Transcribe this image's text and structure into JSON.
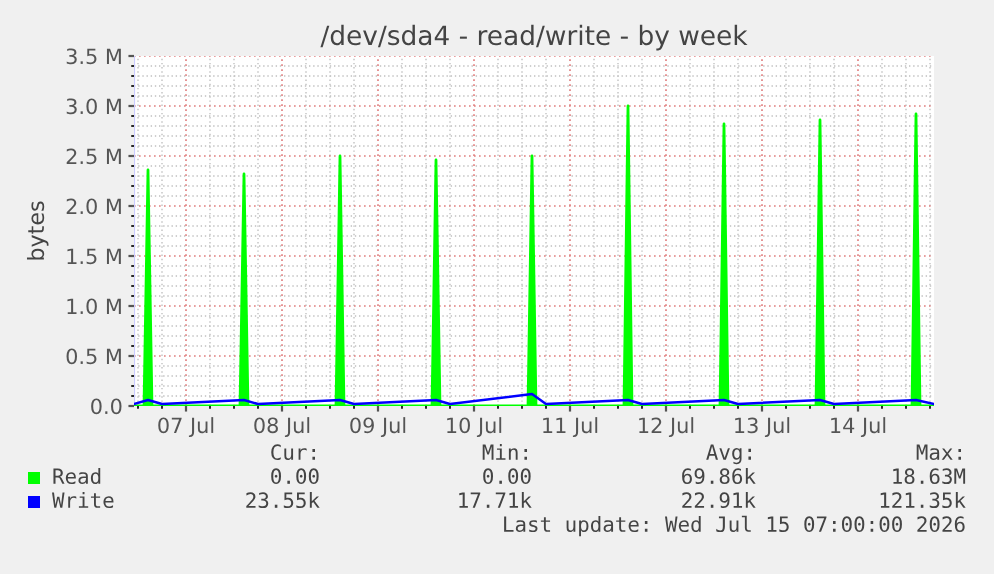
{
  "chart_data": {
    "type": "area",
    "title": "/dev/sda4 - read/write - by week",
    "ylabel": "bytes",
    "series": [
      {
        "name": "Read",
        "color": "#00ff00",
        "x": [
          "2026-07-06T23:00",
          "2026-07-07T01:30",
          "2026-07-07T02:30",
          "2026-07-07T03:30",
          "2026-07-08T01:30",
          "2026-07-08T02:30",
          "2026-07-08T03:30",
          "2026-07-09T01:30",
          "2026-07-09T02:30",
          "2026-07-09T03:30",
          "2026-07-10T01:30",
          "2026-07-10T02:30",
          "2026-07-10T03:30",
          "2026-07-11T01:30",
          "2026-07-11T02:30",
          "2026-07-11T03:30",
          "2026-07-12T01:30",
          "2026-07-12T02:30",
          "2026-07-12T03:30",
          "2026-07-13T01:30",
          "2026-07-13T02:30",
          "2026-07-13T03:30",
          "2026-07-14T01:30",
          "2026-07-14T02:30",
          "2026-07-14T03:30",
          "2026-07-15T01:30",
          "2026-07-15T02:30",
          "2026-07-15T03:30",
          "2026-07-15T07:00"
        ],
        "values": [
          0,
          0,
          2360000,
          0,
          0,
          2320000,
          0,
          0,
          2500000,
          0,
          0,
          2460000,
          0,
          0,
          2500000,
          0,
          0,
          3000000,
          0,
          0,
          2820000,
          0,
          0,
          2860000,
          0,
          0,
          2920000,
          0,
          0
        ]
      },
      {
        "name": "Write",
        "color": "#0000ff",
        "type": "line",
        "x": [
          "2026-07-06T23:00",
          "2026-07-07T02:30",
          "2026-07-07T06:00",
          "2026-07-08T02:30",
          "2026-07-08T06:00",
          "2026-07-09T02:30",
          "2026-07-09T06:00",
          "2026-07-10T02:30",
          "2026-07-10T06:00",
          "2026-07-11T02:30",
          "2026-07-11T06:00",
          "2026-07-12T02:30",
          "2026-07-12T06:00",
          "2026-07-13T02:30",
          "2026-07-13T06:00",
          "2026-07-14T02:30",
          "2026-07-14T06:00",
          "2026-07-15T02:30",
          "2026-07-15T07:00"
        ],
        "values": [
          20000,
          60000,
          20000,
          60000,
          20000,
          60000,
          20000,
          60000,
          20000,
          120000,
          20000,
          60000,
          20000,
          60000,
          20000,
          60000,
          20000,
          60000,
          20000
        ]
      }
    ],
    "xlim": [
      "2026-07-06T23:00",
      "2026-07-15T07:00"
    ],
    "xticks": [
      {
        "value": "2026-07-07T12:00",
        "label": "07 Jul"
      },
      {
        "value": "2026-07-08T12:00",
        "label": "08 Jul"
      },
      {
        "value": "2026-07-09T12:00",
        "label": "09 Jul"
      },
      {
        "value": "2026-07-10T12:00",
        "label": "10 Jul"
      },
      {
        "value": "2026-07-11T12:00",
        "label": "11 Jul"
      },
      {
        "value": "2026-07-12T12:00",
        "label": "12 Jul"
      },
      {
        "value": "2026-07-13T12:00",
        "label": "13 Jul"
      },
      {
        "value": "2026-07-14T12:00",
        "label": "14 Jul"
      }
    ],
    "ylim": [
      0,
      3500000
    ],
    "yticks": [
      {
        "value": 0,
        "label": "0.0"
      },
      {
        "value": 500000,
        "label": "0.5 M"
      },
      {
        "value": 1000000,
        "label": "1.0 M"
      },
      {
        "value": 1500000,
        "label": "1.5 M"
      },
      {
        "value": 2000000,
        "label": "2.0 M"
      },
      {
        "value": 2500000,
        "label": "2.5 M"
      },
      {
        "value": 3000000,
        "label": "3.0 M"
      },
      {
        "value": 3500000,
        "label": "3.5 M"
      }
    ],
    "grid": true,
    "legend": "bottom",
    "annotations": [
      "Cur:",
      "Min:",
      "Avg:",
      "Max:",
      "0.00",
      "0.00",
      "69.86k",
      "18.63M",
      "23.55k",
      "17.71k",
      "22.91k",
      "121.35k",
      "Last update: Wed Jul 15 07:00:00 2026"
    ]
  }
}
